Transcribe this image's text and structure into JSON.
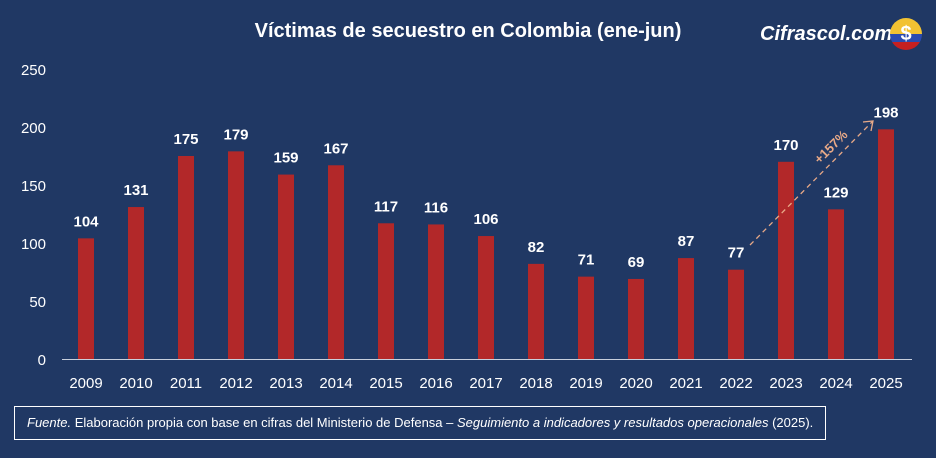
{
  "brand": {
    "name": "Cifrascol.com",
    "flag_icon": "colombia-flag-dollar-icon"
  },
  "chart_data": {
    "type": "bar",
    "title": "Víctimas de secuestro en Colombia (ene-jun)",
    "categories": [
      "2009",
      "2010",
      "2011",
      "2012",
      "2013",
      "2014",
      "2015",
      "2016",
      "2017",
      "2018",
      "2019",
      "2020",
      "2021",
      "2022",
      "2023",
      "2024",
      "2025"
    ],
    "values": [
      104,
      131,
      175,
      179,
      159,
      167,
      117,
      116,
      106,
      82,
      71,
      69,
      87,
      77,
      170,
      129,
      198
    ],
    "ylim": [
      0,
      250
    ],
    "yticks": [
      0,
      50,
      100,
      150,
      200,
      250
    ],
    "grid": false,
    "bar_color": "#b22829",
    "annotation": {
      "text": "+157%",
      "from": "2022",
      "to": "2025",
      "color": "#e8a987"
    }
  },
  "footer": {
    "lead": "Fuente.",
    "text1": " Elaboración propia con base en cifras del Ministerio de Defensa – ",
    "italic": "Seguimiento a indicadores y resultados operacionales",
    "text2": " (2025)."
  }
}
